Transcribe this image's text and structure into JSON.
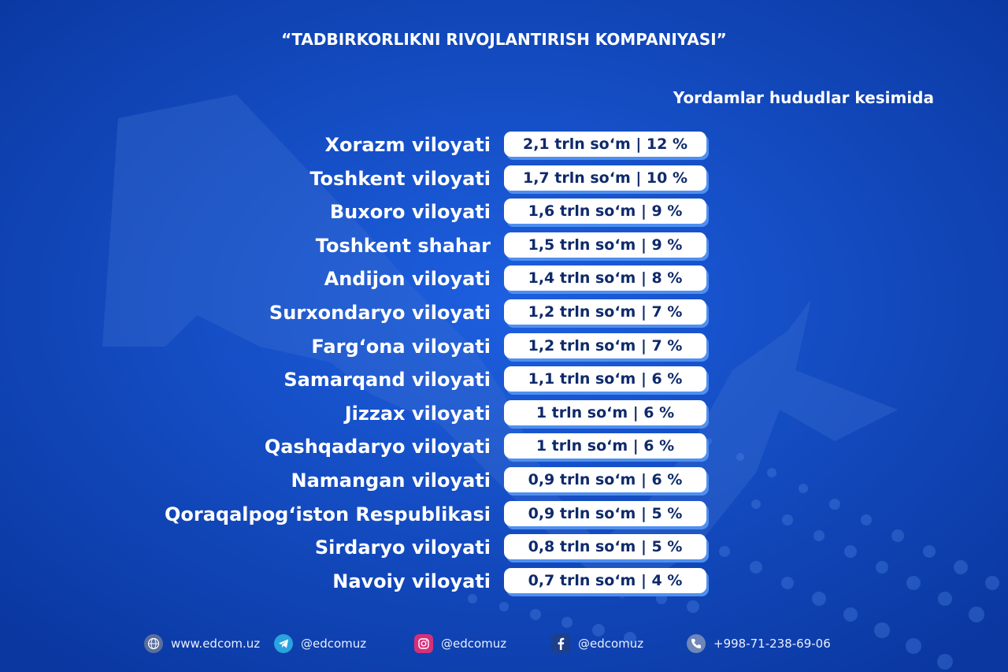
{
  "header": {
    "title": "“TADBIRKORLIKNI RIVOJLANTIRISH KOMPANIYASI”",
    "subtitle": "Yordamlar hududlar kesimida"
  },
  "colors": {
    "background": "#0b3fb0",
    "pill": "#ffffff",
    "pill_shadow": "#4f8ff0",
    "pill_text": "#0f2a6b"
  },
  "chart_data": {
    "type": "table",
    "title": "“TADBIRKORLIKNI RIVOJLANTIRISH KOMPANIYASI”",
    "subtitle": "Yordamlar hududlar kesimida",
    "categories": [
      "Xorazm viloyati",
      "Toshkent viloyati",
      "Buxoro viloyati",
      "Toshkent shahar",
      "Andijon viloyati",
      "Surxondaryo viloyati",
      "Farg‘ona viloyati",
      "Samarqand viloyati",
      "Jizzax viloyati",
      "Qashqadaryo viloyati",
      "Namangan viloyati",
      "Qoraqalpog‘iston Respublikasi",
      "Sirdaryo viloyati",
      "Navoiy viloyati"
    ],
    "value_labels": [
      "2,1 trln so‘m | 12 %",
      "1,7 trln so‘m | 10 %",
      "1,6 trln so‘m | 9 %",
      "1,5 trln so‘m | 9 %",
      "1,4 trln so‘m | 8 %",
      "1,2 trln so‘m | 7 %",
      "1,2 trln so‘m | 7 %",
      "1,1 trln so‘m | 6 %",
      "1 trln so‘m | 6 %",
      "1 trln so‘m | 6 %",
      "0,9 trln so‘m | 6 %",
      "0,9 trln so‘m | 5 %",
      "0,8 trln so‘m | 5 %",
      "0,7 trln so‘m | 4 %"
    ],
    "series": [
      {
        "values": [
          2.1,
          1.7,
          1.6,
          1.5,
          1.4,
          1.2,
          1.2,
          1.1,
          1.0,
          1.0,
          0.9,
          0.9,
          0.8,
          0.7
        ]
      },
      {
        "values": [
          12,
          10,
          9,
          9,
          8,
          7,
          7,
          6,
          6,
          6,
          6,
          5,
          5,
          4
        ]
      }
    ]
  },
  "footer": {
    "items": [
      {
        "icon": "globe-icon",
        "text": "www.edcom.uz"
      },
      {
        "icon": "telegram-icon",
        "text": "@edcomuz"
      },
      {
        "icon": "instagram-icon",
        "text": "@edcomuz"
      },
      {
        "icon": "facebook-icon",
        "text": "@edcomuz"
      },
      {
        "icon": "phone-icon",
        "text": "+998-71-238-69-06"
      }
    ]
  }
}
